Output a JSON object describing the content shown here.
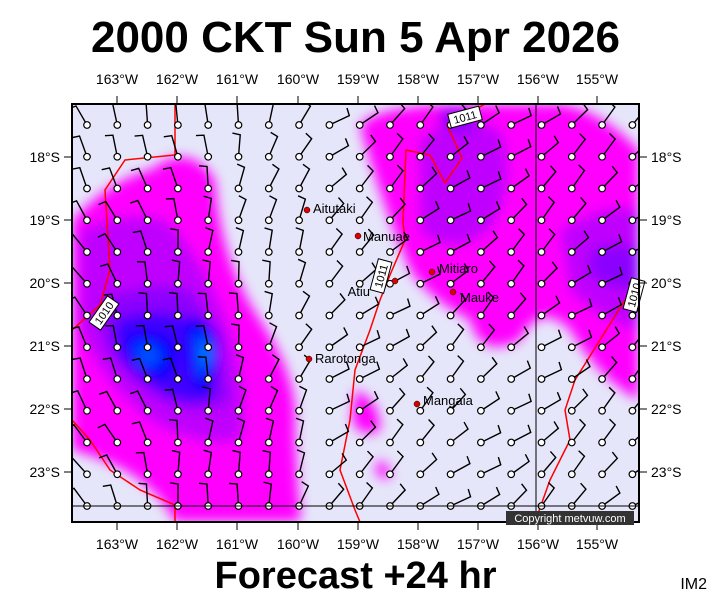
{
  "title": "2000 CKT Sun 5 Apr 2026",
  "footer": "Forecast +24 hr",
  "corner_label": "IM2",
  "copyright": "Copyright metvuw.com",
  "longitude_labels": [
    "163°W",
    "162°W",
    "161°W",
    "160°W",
    "159°W",
    "158°W",
    "157°W",
    "156°W",
    "155°W"
  ],
  "latitude_labels": [
    "18°S",
    "19°S",
    "20°S",
    "21°S",
    "22°S",
    "23°S"
  ],
  "places": [
    {
      "name": "Aitutaki"
    },
    {
      "name": "Manuae"
    },
    {
      "name": "Atiu"
    },
    {
      "name": "Mitiaro"
    },
    {
      "name": "Mauke"
    },
    {
      "name": "Rarotonga"
    },
    {
      "name": "Mangaia"
    }
  ],
  "isobar_labels": [
    "1011",
    "1011",
    "1010",
    "1010"
  ],
  "colors": {
    "background": "#e6e6fa",
    "rain_levels": [
      "#ff00ff",
      "#c000ff",
      "#8c00ff",
      "#5a00ff",
      "#0000ff",
      "#0040ff",
      "#0080ff"
    ],
    "isobar": "#ff0000",
    "place_marker": "#dd0000"
  }
}
